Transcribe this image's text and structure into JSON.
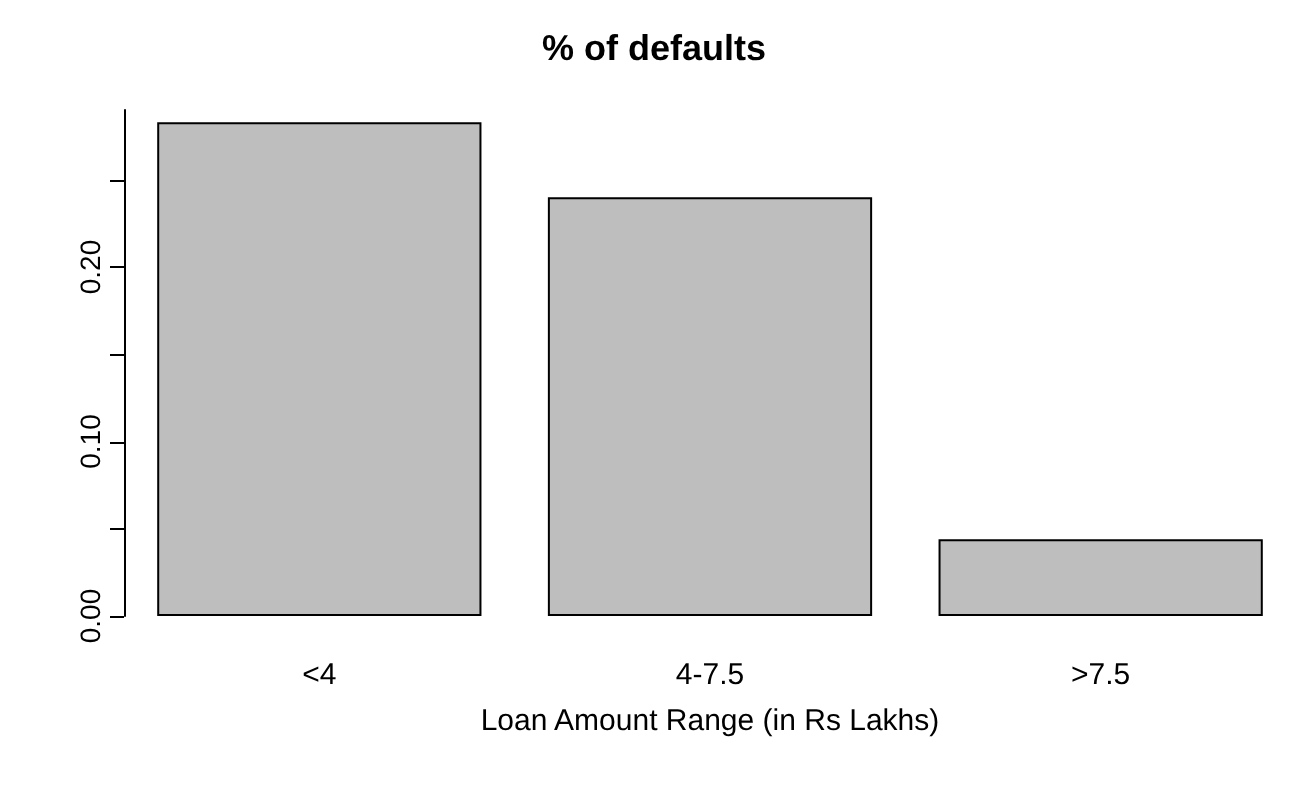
{
  "chart_data": {
    "type": "bar",
    "title": "% of defaults",
    "xlabel": "Loan Amount Range (in Rs Lakhs)",
    "categories": [
      "<4",
      "4-7.5",
      ">7.5"
    ],
    "values": [
      0.283,
      0.24,
      0.044
    ],
    "color": "#bebebe",
    "ylim": [
      0,
      0.29
    ],
    "yticks": [
      {
        "value": 0,
        "label": "0.00"
      },
      {
        "value": 0.05,
        "label": null
      },
      {
        "value": 0.1,
        "label": "0.10"
      },
      {
        "value": 0.15,
        "label": null
      },
      {
        "value": 0.2,
        "label": "0.20"
      },
      {
        "value": 0.25,
        "label": null
      }
    ],
    "grid": false
  }
}
